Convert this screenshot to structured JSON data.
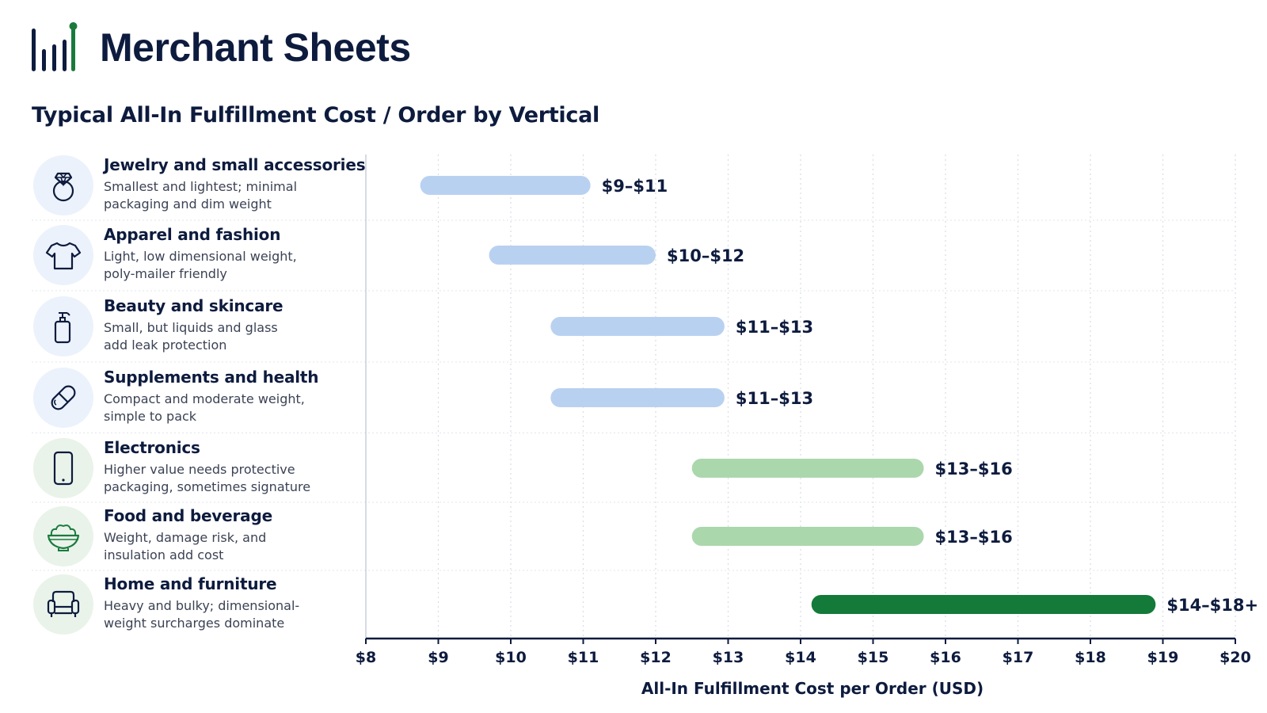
{
  "brand": {
    "name": "Merchant Sheets",
    "accent_color": "#1a7a3c",
    "logo_color": "#0d1b3e",
    "icon": "bar-chart-logo-icon"
  },
  "chart_data": {
    "type": "bar",
    "orientation": "horizontal-range",
    "title": "Typical All-In Fulfillment Cost / Order by Vertical",
    "xlabel": "All-In Fulfillment Cost per Order (USD)",
    "ylabel": "",
    "xlim": [
      8,
      20
    ],
    "x_ticks": [
      8,
      9,
      10,
      11,
      12,
      13,
      14,
      15,
      16,
      17,
      18,
      19,
      20
    ],
    "x_tick_labels": [
      "$8",
      "$9",
      "$10",
      "$11",
      "$12",
      "$13",
      "$14",
      "$15",
      "$16",
      "$17",
      "$18",
      "$19",
      "$20"
    ],
    "grid": "vertical dotted",
    "colors": {
      "light_blue": "#b9d1f1",
      "light_green": "#abd7ad",
      "dark_green": "#137a3a"
    },
    "categories": [
      {
        "name": "Jewelry and small accessories",
        "desc": [
          "Smallest and lightest; minimal",
          "packaging and dim weight"
        ],
        "icon": "ring-icon",
        "icon_bg": "blue",
        "low": 8.75,
        "high": 11.1,
        "label": "$9–$11",
        "color": "light_blue"
      },
      {
        "name": "Apparel and fashion",
        "desc": [
          "Light, low dimensional weight,",
          "poly-mailer friendly"
        ],
        "icon": "tshirt-icon",
        "icon_bg": "blue",
        "low": 9.7,
        "high": 12.0,
        "label": "$10–$12",
        "color": "light_blue"
      },
      {
        "name": "Beauty and skincare",
        "desc": [
          "Small, but liquids and glass",
          "add leak protection"
        ],
        "icon": "pump-bottle-icon",
        "icon_bg": "blue",
        "low": 10.55,
        "high": 12.95,
        "label": "$11–$13",
        "color": "light_blue"
      },
      {
        "name": "Supplements and health",
        "desc": [
          "Compact and moderate weight,",
          "simple to pack"
        ],
        "icon": "capsule-icon",
        "icon_bg": "blue",
        "low": 10.55,
        "high": 12.95,
        "label": "$11–$13",
        "color": "light_blue"
      },
      {
        "name": "Electronics",
        "desc": [
          "Higher value needs protective",
          "packaging, sometimes signature"
        ],
        "icon": "smartphone-icon",
        "icon_bg": "green",
        "low": 12.5,
        "high": 15.7,
        "label": "$13–$16",
        "color": "light_green"
      },
      {
        "name": "Food and beverage",
        "desc": [
          "Weight, damage risk, and",
          "insulation add cost"
        ],
        "icon": "salad-bowl-icon",
        "icon_bg": "green",
        "low": 12.5,
        "high": 15.7,
        "label": "$13–$16",
        "color": "light_green"
      },
      {
        "name": "Home and furniture",
        "desc": [
          "Heavy and bulky; dimensional-",
          "weight surcharges dominate"
        ],
        "icon": "armchair-icon",
        "icon_bg": "green",
        "low": 14.15,
        "high": 18.9,
        "label": "$14–$18+",
        "color": "dark_green"
      }
    ]
  }
}
